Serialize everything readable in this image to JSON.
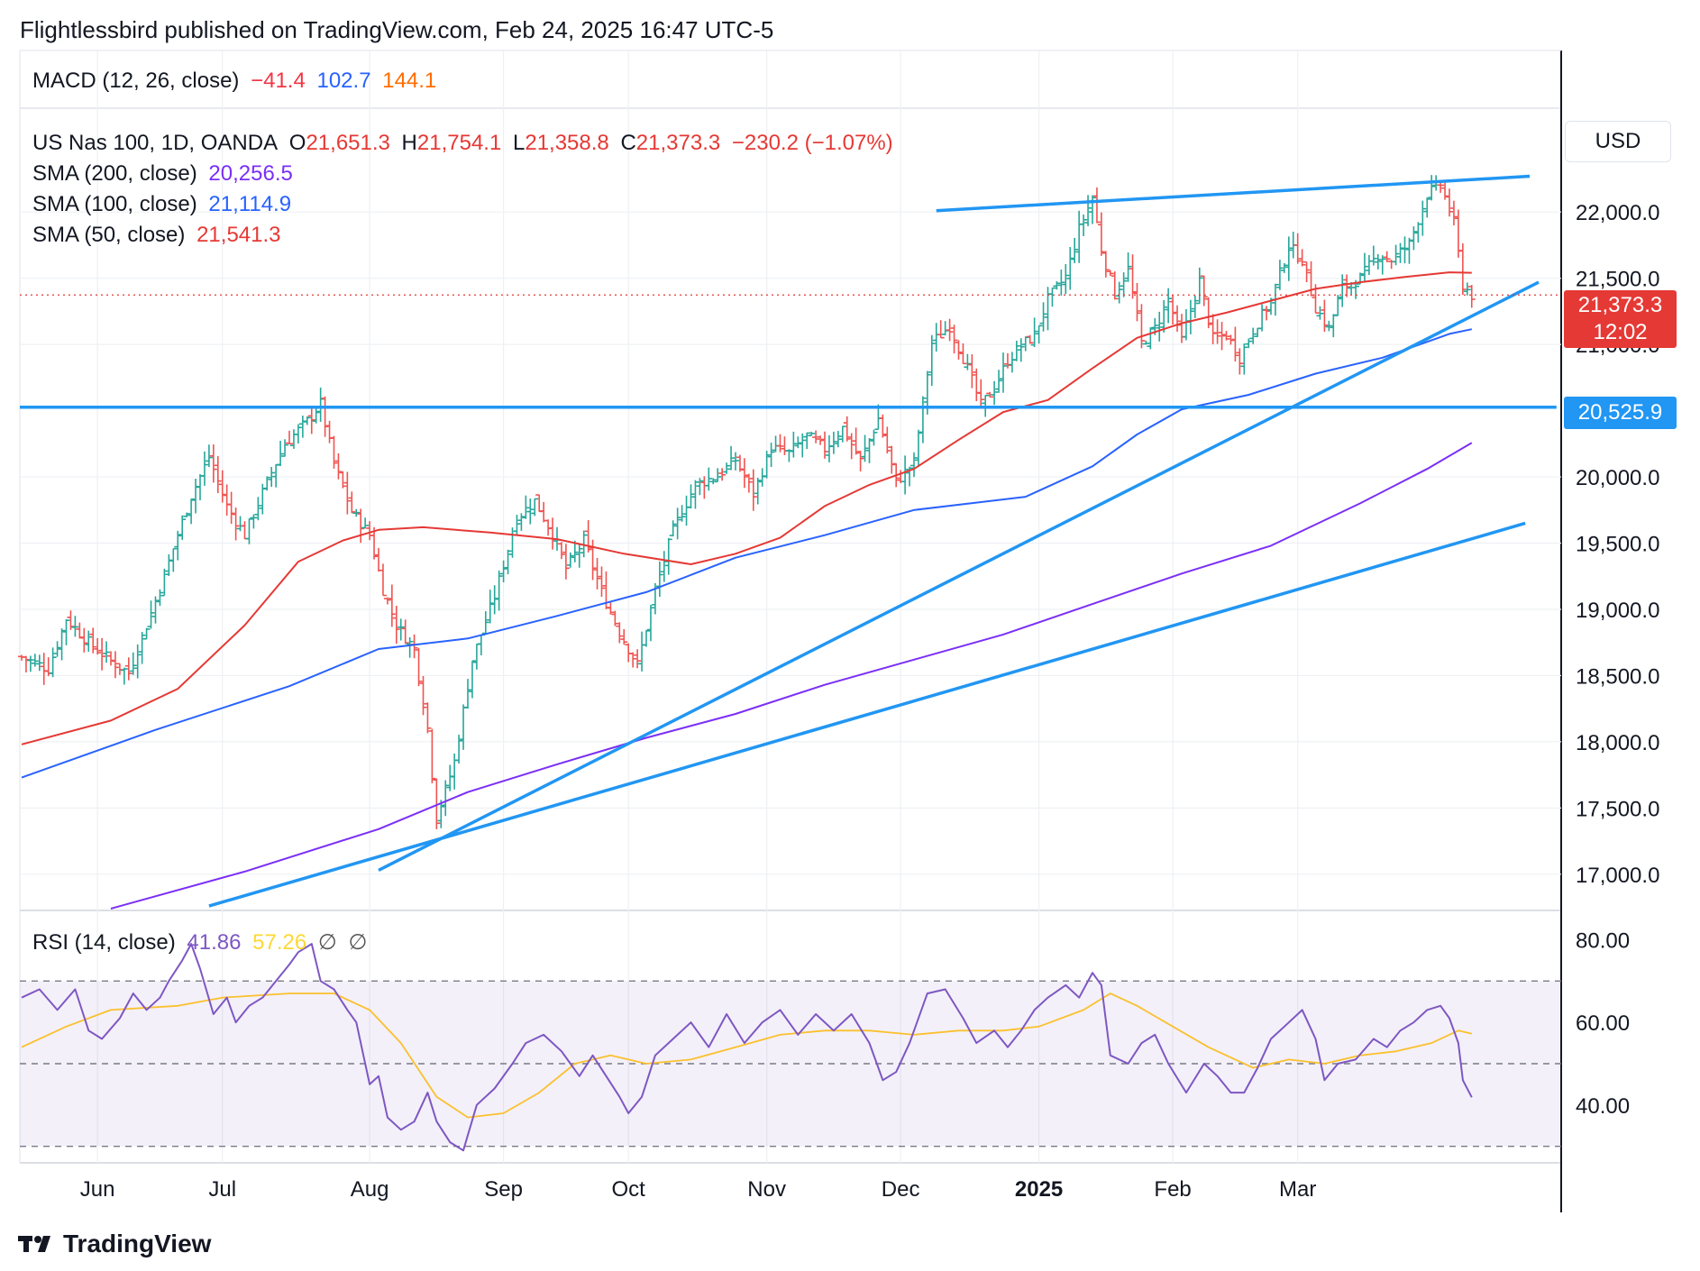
{
  "header": {
    "publisher_line": "Flightlessbird published on TradingView.com, Feb 24, 2025 16:47 UTC-5"
  },
  "macd": {
    "label": "MACD (12, 26, close)",
    "v1": "−41.4",
    "v2": "102.7",
    "v3": "144.1",
    "c1": "#f23645",
    "c2": "#2962ff",
    "c3": "#ff6d00"
  },
  "symbol": {
    "name": "US Nas 100, 1D, OANDA",
    "o_label": "O",
    "o": "21,651.3",
    "h_label": "H",
    "h": "21,754.1",
    "l_label": "L",
    "l": "21,358.8",
    "c_label": "C",
    "c": "21,373.3",
    "chg": "−230.2 (−1.07%)"
  },
  "sma200": {
    "label": "SMA (200, close)",
    "value": "20,256.5",
    "color": "#7b2ff7"
  },
  "sma100": {
    "label": "SMA (100, close)",
    "value": "21,114.9",
    "color": "#2962ff"
  },
  "sma50": {
    "label": "SMA (50, close)",
    "value": "21,541.3",
    "color": "#e53935"
  },
  "rsi": {
    "label": "RSI (14, close)",
    "value": "41.86",
    "ma_value": "57.26",
    "extra1": "∅",
    "extra2": "∅"
  },
  "currency": "USD",
  "price_tags": {
    "last": "21,373.3",
    "countdown": "12:02",
    "level": "20,525.9",
    "last_color": "#e53935",
    "level_color": "#2196f3"
  },
  "brand": {
    "name": "TradingView"
  },
  "chart_data": {
    "type": "candlestick",
    "title": "US Nas 100, 1D, OANDA",
    "x_ticks": [
      "Jun",
      "Jul",
      "Aug",
      "Sep",
      "Oct",
      "Nov",
      "Dec",
      "2025",
      "Feb",
      "Mar"
    ],
    "y_ticks": [
      "22,000.0",
      "21,500.0",
      "21,000.0",
      "20,000.0",
      "19,500.0",
      "19,000.0",
      "18,500.0",
      "18,000.0",
      "17,500.0",
      "17,000.0"
    ],
    "ylim": [
      16740,
      22580
    ],
    "rsi_ticks": [
      "80.00",
      "60.00",
      "40.00"
    ],
    "rsi_ylim": [
      26,
      86
    ],
    "rsi_bands": {
      "upper": 70,
      "middle": 50,
      "lower": 30
    },
    "close_path": [
      [
        0,
        18640
      ],
      [
        6,
        18550
      ],
      [
        10,
        18930
      ],
      [
        15,
        18750
      ],
      [
        20,
        18610
      ],
      [
        24,
        18520
      ],
      [
        29,
        18970
      ],
      [
        33,
        19360
      ],
      [
        38,
        19860
      ],
      [
        42,
        20150
      ],
      [
        46,
        19780
      ],
      [
        50,
        19560
      ],
      [
        55,
        19960
      ],
      [
        59,
        20250
      ],
      [
        64,
        20420
      ],
      [
        67,
        20550
      ],
      [
        70,
        20100
      ],
      [
        74,
        19740
      ],
      [
        78,
        19560
      ],
      [
        81,
        19150
      ],
      [
        84,
        18880
      ],
      [
        88,
        18700
      ],
      [
        91,
        18100
      ],
      [
        93,
        17420
      ],
      [
        97,
        17850
      ],
      [
        101,
        18620
      ],
      [
        106,
        19100
      ],
      [
        111,
        19690
      ],
      [
        115,
        19820
      ],
      [
        119,
        19570
      ],
      [
        122,
        19310
      ],
      [
        126,
        19520
      ],
      [
        130,
        19130
      ],
      [
        134,
        18830
      ],
      [
        138,
        18580
      ],
      [
        142,
        19140
      ],
      [
        146,
        19600
      ],
      [
        151,
        19940
      ],
      [
        156,
        20010
      ],
      [
        160,
        20130
      ],
      [
        164,
        19870
      ],
      [
        168,
        20220
      ],
      [
        172,
        20180
      ],
      [
        176,
        20310
      ],
      [
        180,
        20210
      ],
      [
        184,
        20370
      ],
      [
        188,
        20120
      ],
      [
        192,
        20440
      ],
      [
        196,
        19960
      ],
      [
        200,
        20110
      ],
      [
        204,
        21010
      ],
      [
        208,
        21140
      ],
      [
        212,
        20820
      ],
      [
        215,
        20540
      ],
      [
        218,
        20670
      ],
      [
        221,
        20880
      ],
      [
        224,
        20990
      ],
      [
        227,
        21070
      ],
      [
        230,
        21340
      ],
      [
        234,
        21510
      ],
      [
        237,
        21870
      ],
      [
        240,
        22110
      ],
      [
        242,
        21720
      ],
      [
        245,
        21380
      ],
      [
        248,
        21570
      ],
      [
        251,
        21010
      ],
      [
        254,
        21120
      ],
      [
        257,
        21340
      ],
      [
        260,
        21030
      ],
      [
        264,
        21480
      ],
      [
        267,
        21040
      ],
      [
        270,
        21070
      ],
      [
        273,
        20900
      ],
      [
        276,
        21110
      ],
      [
        280,
        21330
      ],
      [
        284,
        21740
      ],
      [
        287,
        21640
      ],
      [
        290,
        21280
      ],
      [
        293,
        21120
      ],
      [
        296,
        21430
      ],
      [
        300,
        21500
      ],
      [
        304,
        21680
      ],
      [
        307,
        21640
      ],
      [
        311,
        21760
      ],
      [
        315,
        22130
      ],
      [
        318,
        22210
      ],
      [
        321,
        21920
      ],
      [
        323,
        21450
      ],
      [
        325,
        21373
      ]
    ],
    "sma50": [
      [
        0,
        17980
      ],
      [
        20,
        18160
      ],
      [
        35,
        18400
      ],
      [
        50,
        18880
      ],
      [
        62,
        19360
      ],
      [
        72,
        19520
      ],
      [
        80,
        19600
      ],
      [
        90,
        19620
      ],
      [
        105,
        19580
      ],
      [
        120,
        19530
      ],
      [
        135,
        19420
      ],
      [
        150,
        19340
      ],
      [
        160,
        19420
      ],
      [
        170,
        19540
      ],
      [
        180,
        19780
      ],
      [
        190,
        19940
      ],
      [
        200,
        20060
      ],
      [
        210,
        20280
      ],
      [
        220,
        20490
      ],
      [
        230,
        20580
      ],
      [
        240,
        20820
      ],
      [
        250,
        21050
      ],
      [
        260,
        21160
      ],
      [
        270,
        21240
      ],
      [
        280,
        21330
      ],
      [
        290,
        21420
      ],
      [
        300,
        21470
      ],
      [
        310,
        21510
      ],
      [
        320,
        21545
      ],
      [
        325,
        21541
      ]
    ],
    "sma100": [
      [
        0,
        17730
      ],
      [
        30,
        18090
      ],
      [
        60,
        18420
      ],
      [
        80,
        18700
      ],
      [
        100,
        18780
      ],
      [
        120,
        18950
      ],
      [
        140,
        19130
      ],
      [
        160,
        19390
      ],
      [
        180,
        19560
      ],
      [
        200,
        19750
      ],
      [
        215,
        19810
      ],
      [
        225,
        19850
      ],
      [
        240,
        20080
      ],
      [
        250,
        20320
      ],
      [
        260,
        20510
      ],
      [
        275,
        20620
      ],
      [
        290,
        20780
      ],
      [
        305,
        20900
      ],
      [
        320,
        21080
      ],
      [
        325,
        21115
      ]
    ],
    "sma200": [
      [
        20,
        16740
      ],
      [
        50,
        17020
      ],
      [
        80,
        17340
      ],
      [
        100,
        17620
      ],
      [
        120,
        17830
      ],
      [
        140,
        18030
      ],
      [
        160,
        18210
      ],
      [
        180,
        18430
      ],
      [
        200,
        18620
      ],
      [
        220,
        18810
      ],
      [
        240,
        19040
      ],
      [
        260,
        19270
      ],
      [
        280,
        19480
      ],
      [
        300,
        19800
      ],
      [
        315,
        20060
      ],
      [
        325,
        20257
      ]
    ],
    "trendlines": [
      {
        "name": "upper channel",
        "from": [
          205,
          22010
        ],
        "to": [
          338,
          22270
        ]
      },
      {
        "name": "rising support",
        "from": [
          80,
          17030
        ],
        "to": [
          340,
          21470
        ]
      },
      {
        "name": "lower channel",
        "from": [
          42,
          16760
        ],
        "to": [
          337,
          19650
        ]
      },
      {
        "name": "horizontal level",
        "from": [
          -5,
          20525.9
        ],
        "to": [
          344,
          20525.9
        ]
      }
    ],
    "rsi_path": [
      [
        0,
        66
      ],
      [
        4,
        68
      ],
      [
        8,
        63
      ],
      [
        12,
        68
      ],
      [
        15,
        58
      ],
      [
        18,
        56
      ],
      [
        22,
        61
      ],
      [
        25,
        67
      ],
      [
        28,
        63
      ],
      [
        31,
        66
      ],
      [
        33,
        70
      ],
      [
        36,
        75
      ],
      [
        38,
        79
      ],
      [
        40,
        73
      ],
      [
        43,
        62
      ],
      [
        46,
        66
      ],
      [
        48,
        60
      ],
      [
        51,
        64
      ],
      [
        54,
        66
      ],
      [
        57,
        70
      ],
      [
        60,
        74
      ],
      [
        62,
        77
      ],
      [
        65,
        79
      ],
      [
        67,
        70
      ],
      [
        70,
        68
      ],
      [
        73,
        63
      ],
      [
        75,
        60
      ],
      [
        78,
        45
      ],
      [
        80,
        47
      ],
      [
        82,
        37
      ],
      [
        85,
        34
      ],
      [
        88,
        36
      ],
      [
        91,
        43
      ],
      [
        93,
        36
      ],
      [
        96,
        31
      ],
      [
        99,
        29
      ],
      [
        102,
        40
      ],
      [
        106,
        44
      ],
      [
        110,
        50
      ],
      [
        113,
        55
      ],
      [
        117,
        57
      ],
      [
        121,
        53
      ],
      [
        125,
        47
      ],
      [
        128,
        52
      ],
      [
        131,
        47
      ],
      [
        134,
        42
      ],
      [
        136,
        38
      ],
      [
        139,
        42
      ],
      [
        142,
        52
      ],
      [
        146,
        56
      ],
      [
        150,
        60
      ],
      [
        154,
        54
      ],
      [
        158,
        62
      ],
      [
        162,
        55
      ],
      [
        166,
        60
      ],
      [
        170,
        63
      ],
      [
        174,
        57
      ],
      [
        178,
        62
      ],
      [
        182,
        58
      ],
      [
        186,
        62
      ],
      [
        190,
        55
      ],
      [
        193,
        46
      ],
      [
        196,
        48
      ],
      [
        199,
        55
      ],
      [
        203,
        67
      ],
      [
        207,
        68
      ],
      [
        211,
        61
      ],
      [
        214,
        55
      ],
      [
        218,
        58
      ],
      [
        221,
        54
      ],
      [
        224,
        58
      ],
      [
        227,
        63
      ],
      [
        230,
        66
      ],
      [
        234,
        69
      ],
      [
        237,
        66
      ],
      [
        240,
        72
      ],
      [
        242,
        69
      ],
      [
        244,
        52
      ],
      [
        248,
        50
      ],
      [
        251,
        55
      ],
      [
        254,
        57
      ],
      [
        257,
        50
      ],
      [
        261,
        43
      ],
      [
        265,
        50
      ],
      [
        268,
        47
      ],
      [
        271,
        43
      ],
      [
        274,
        43
      ],
      [
        277,
        49
      ],
      [
        280,
        56
      ],
      [
        283,
        59
      ],
      [
        287,
        63
      ],
      [
        290,
        56
      ],
      [
        292,
        46
      ],
      [
        295,
        50
      ],
      [
        299,
        51
      ],
      [
        303,
        56
      ],
      [
        306,
        54
      ],
      [
        309,
        58
      ],
      [
        312,
        60
      ],
      [
        315,
        63
      ],
      [
        318,
        64
      ],
      [
        320,
        61
      ],
      [
        322,
        55
      ],
      [
        323,
        46
      ],
      [
        325,
        41.86
      ]
    ],
    "rsi_ma_path": [
      [
        0,
        54
      ],
      [
        10,
        59
      ],
      [
        20,
        63
      ],
      [
        35,
        64
      ],
      [
        45,
        66
      ],
      [
        60,
        67
      ],
      [
        70,
        67
      ],
      [
        78,
        63
      ],
      [
        85,
        55
      ],
      [
        93,
        42
      ],
      [
        100,
        37
      ],
      [
        108,
        38
      ],
      [
        116,
        43
      ],
      [
        124,
        50
      ],
      [
        132,
        52
      ],
      [
        140,
        50
      ],
      [
        150,
        51
      ],
      [
        160,
        54
      ],
      [
        170,
        57
      ],
      [
        180,
        58
      ],
      [
        190,
        58
      ],
      [
        200,
        57
      ],
      [
        210,
        58
      ],
      [
        220,
        58
      ],
      [
        228,
        59
      ],
      [
        238,
        63
      ],
      [
        244,
        67
      ],
      [
        250,
        64
      ],
      [
        258,
        59
      ],
      [
        266,
        54
      ],
      [
        276,
        49
      ],
      [
        284,
        51
      ],
      [
        292,
        50
      ],
      [
        300,
        52
      ],
      [
        308,
        53
      ],
      [
        316,
        55
      ],
      [
        322,
        58
      ],
      [
        325,
        57.26
      ]
    ]
  }
}
